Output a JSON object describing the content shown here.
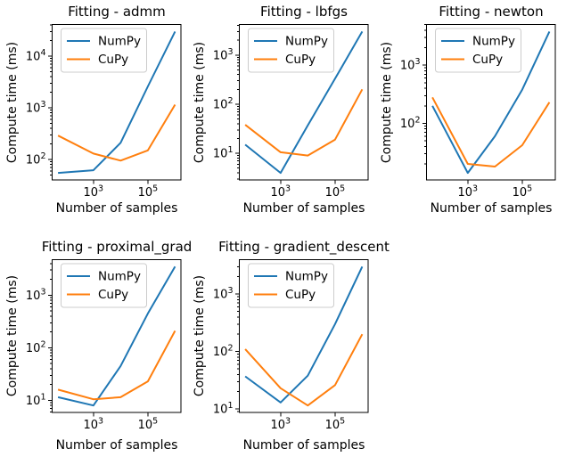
{
  "figure": {
    "background": "#ffffff",
    "text_color": "#000000"
  },
  "colors": {
    "numpy_line": "#1f77b4",
    "cupy_line": "#ff7f0e",
    "spine": "#000000",
    "legend_border": "#cccccc",
    "legend_background": "rgba(255,255,255,0.8)"
  },
  "chart_data": [
    {
      "type": "line",
      "title": "Fitting - admm",
      "xlabel": "Number of samples",
      "ylabel": "Compute time (ms)",
      "xscale": "log",
      "yscale": "log",
      "grid": false,
      "legend_position": "upper left",
      "x": [
        50,
        1000,
        10000,
        100000,
        1000000
      ],
      "xticks": [
        1000,
        100000
      ],
      "xtick_labels": [
        "10^3",
        "10^5"
      ],
      "yticks": [
        100,
        1000,
        10000
      ],
      "ytick_labels": [
        "10^2",
        "10^3",
        "10^4"
      ],
      "series": [
        {
          "name": "NumPy",
          "color": "#1f77b4",
          "values": [
            55,
            62,
            210,
            2600,
            30000
          ]
        },
        {
          "name": "CuPy",
          "color": "#ff7f0e",
          "values": [
            290,
            130,
            95,
            150,
            1150
          ]
        }
      ]
    },
    {
      "type": "line",
      "title": "Fitting - lbfgs",
      "xlabel": "Number of samples",
      "ylabel": "Compute time (ms)",
      "xscale": "log",
      "yscale": "log",
      "grid": false,
      "legend_position": "upper left",
      "x": [
        50,
        1000,
        10000,
        100000,
        1000000
      ],
      "xticks": [
        1000,
        100000
      ],
      "xtick_labels": [
        "10^3",
        "10^5"
      ],
      "yticks": [
        10,
        100,
        1000
      ],
      "ytick_labels": [
        "10^1",
        "10^2",
        "10^3"
      ],
      "series": [
        {
          "name": "NumPy",
          "color": "#1f77b4",
          "values": [
            15,
            4,
            37,
            330,
            3000
          ]
        },
        {
          "name": "CuPy",
          "color": "#ff7f0e",
          "values": [
            38,
            10.5,
            9,
            19,
            200
          ]
        }
      ]
    },
    {
      "type": "line",
      "title": "Fitting - newton",
      "xlabel": "Number of samples",
      "ylabel": "Compute time (ms)",
      "xscale": "log",
      "yscale": "log",
      "grid": false,
      "legend_position": "upper left",
      "x": [
        50,
        1000,
        10000,
        100000,
        1000000
      ],
      "xticks": [
        1000,
        100000
      ],
      "xtick_labels": [
        "10^3",
        "10^5"
      ],
      "yticks": [
        100,
        1000
      ],
      "ytick_labels": [
        "10^2",
        "10^3"
      ],
      "series": [
        {
          "name": "NumPy",
          "color": "#1f77b4",
          "values": [
            200,
            14,
            60,
            380,
            3800
          ]
        },
        {
          "name": "CuPy",
          "color": "#ff7f0e",
          "values": [
            280,
            20,
            18,
            42,
            230
          ]
        }
      ]
    },
    {
      "type": "line",
      "title": "Fitting - proximal_grad",
      "xlabel": "Number of samples",
      "ylabel": "Compute time (ms)",
      "xscale": "log",
      "yscale": "log",
      "grid": false,
      "legend_position": "upper left",
      "x": [
        50,
        1000,
        10000,
        100000,
        1000000
      ],
      "xticks": [
        1000,
        100000
      ],
      "xtick_labels": [
        "10^3",
        "10^5"
      ],
      "yticks": [
        10,
        100,
        1000
      ],
      "ytick_labels": [
        "10^1",
        "10^2",
        "10^3"
      ],
      "series": [
        {
          "name": "NumPy",
          "color": "#1f77b4",
          "values": [
            11.5,
            8,
            45,
            450,
            3500
          ]
        },
        {
          "name": "CuPy",
          "color": "#ff7f0e",
          "values": [
            16,
            10.5,
            11.5,
            23,
            210
          ]
        }
      ]
    },
    {
      "type": "line",
      "title": "Fitting - gradient_descent",
      "xlabel": "Number of samples",
      "ylabel": "Compute time (ms)",
      "xscale": "log",
      "yscale": "log",
      "grid": false,
      "legend_position": "upper left",
      "x": [
        50,
        1000,
        10000,
        100000,
        1000000
      ],
      "xticks": [
        1000,
        100000
      ],
      "xtick_labels": [
        "10^3",
        "10^5"
      ],
      "yticks": [
        10,
        100,
        1000
      ],
      "ytick_labels": [
        "10^1",
        "10^2",
        "10^3"
      ],
      "series": [
        {
          "name": "NumPy",
          "color": "#1f77b4",
          "values": [
            37,
            13,
            38,
            300,
            3000
          ]
        },
        {
          "name": "CuPy",
          "color": "#ff7f0e",
          "values": [
            110,
            23,
            11.5,
            26,
            200
          ]
        }
      ]
    }
  ]
}
